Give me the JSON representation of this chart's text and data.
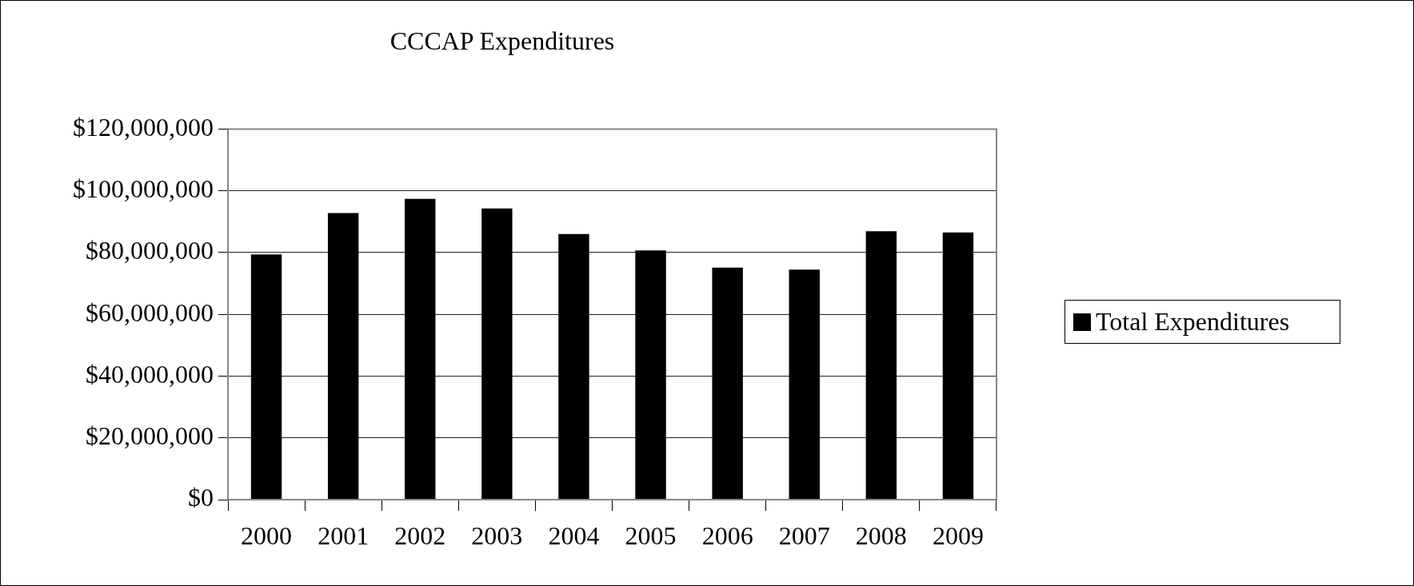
{
  "chart_data": {
    "type": "bar",
    "title": "CCCAP Expenditures",
    "categories": [
      "2000",
      "2001",
      "2002",
      "2003",
      "2004",
      "2005",
      "2006",
      "2007",
      "2008",
      "2009"
    ],
    "series": [
      {
        "name": "Total Expenditures",
        "color": "#000000",
        "values": [
          79400000,
          92800000,
          97400000,
          94300000,
          86000000,
          80700000,
          75100000,
          74500000,
          86900000,
          86500000
        ]
      }
    ],
    "ylim": [
      0,
      120000000
    ],
    "yticks": [
      {
        "value": 0,
        "label": "$0"
      },
      {
        "value": 20000000,
        "label": "$20,000,000"
      },
      {
        "value": 40000000,
        "label": "$40,000,000"
      },
      {
        "value": 60000000,
        "label": "$60,000,000"
      },
      {
        "value": 80000000,
        "label": "$80,000,000"
      },
      {
        "value": 100000000,
        "label": "$100,000,000"
      },
      {
        "value": 120000000,
        "label": "$120,000,000"
      }
    ],
    "grid": "y",
    "legend": "right"
  }
}
